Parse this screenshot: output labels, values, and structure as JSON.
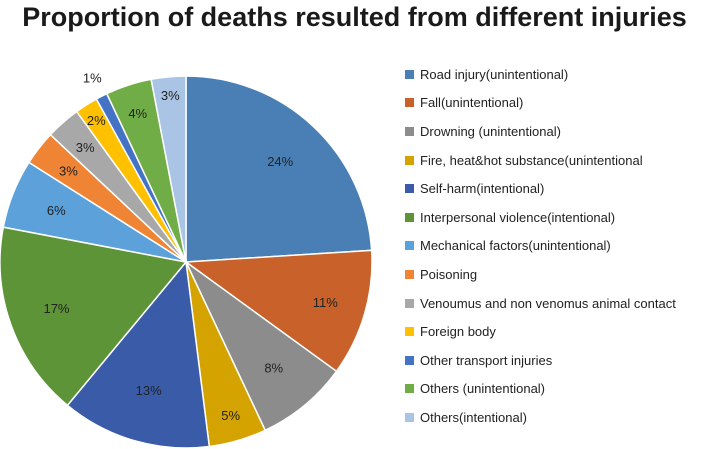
{
  "chart_data": {
    "type": "pie",
    "title": "Proportion of deaths resulted from different injuries",
    "legend_position": "right",
    "slices": [
      {
        "label": "Road injury(unintentional)",
        "value": 24,
        "display": "24%",
        "color": "#4a7fb5"
      },
      {
        "label": "Fall(unintentional)",
        "value": 11,
        "display": "11%",
        "color": "#c8622a"
      },
      {
        "label": "Drowning (unintentional)",
        "value": 8,
        "display": "8%",
        "color": "#8c8c8c"
      },
      {
        "label": "Fire, heat&hot substance(unintentional",
        "value": 5,
        "display": "5%",
        "color": "#d4a300"
      },
      {
        "label": "Self-harm(intentional)",
        "value": 13,
        "display": "13%",
        "color": "#3a5ca8"
      },
      {
        "label": "Interpersonal violence(intentional)",
        "value": 17,
        "display": "17%",
        "color": "#5e9438"
      },
      {
        "label": "Mechanical factors(unintentional)",
        "value": 6,
        "display": "6%",
        "color": "#5ca1da"
      },
      {
        "label": "Poisoning",
        "value": 3,
        "display": "3%",
        "color": "#ee8434"
      },
      {
        "label": "Venoumus and non venomus animal contact",
        "value": 3,
        "display": "3%",
        "color": "#a8a8a8"
      },
      {
        "label": "Foreign body",
        "value": 2,
        "display": "2%",
        "color": "#ffc000"
      },
      {
        "label": "Other transport injuries",
        "value": 1,
        "display": "1%",
        "color": "#4472c4"
      },
      {
        "label": "Others (unintentional)",
        "value": 4,
        "display": "4%",
        "color": "#70ad47"
      },
      {
        "label": "Others(intentional)",
        "value": 3,
        "display": "3%",
        "color": "#a9c4e4"
      }
    ]
  }
}
